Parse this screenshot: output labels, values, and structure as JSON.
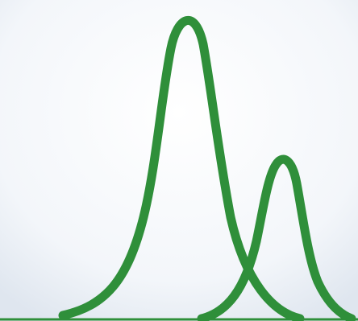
{
  "figure": {
    "kind": "two overlapping bell-shaped peaks on a baseline",
    "colors": {
      "curve": "#2f8f3a",
      "baseline": "#2f8f3a",
      "background_top": "#ffffff",
      "background_bottom": "#dfe6ef"
    },
    "peaks": [
      {
        "relative_height": 1.0
      },
      {
        "relative_height": 0.53
      }
    ]
  }
}
